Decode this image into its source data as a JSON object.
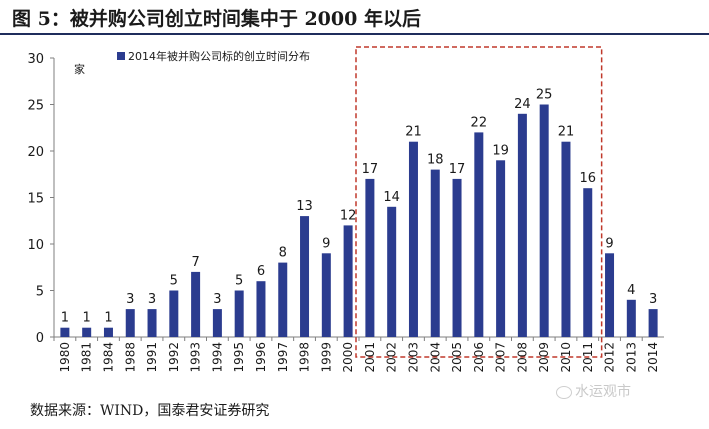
{
  "figure_title": "图 5：被并购公司创立时间集中于 2000 年以后",
  "source_note": "数据来源：WIND，国泰君安证券研究",
  "watermark_text": "水运观市",
  "colors": {
    "bar": "#2b3c8f",
    "highlight_box": "#c0392b",
    "rule": "#1f2d5c"
  },
  "chart_data": {
    "type": "bar",
    "title": "",
    "xlabel": "",
    "ylabel": "家",
    "ylim": [
      0,
      30
    ],
    "yticks": [
      0,
      5,
      10,
      15,
      20,
      25,
      30
    ],
    "grid": false,
    "legend_position": "top-left",
    "categories": [
      "1980",
      "1981",
      "1984",
      "1988",
      "1991",
      "1992",
      "1993",
      "1994",
      "1995",
      "1996",
      "1997",
      "1998",
      "1999",
      "2000",
      "2001",
      "2002",
      "2003",
      "2004",
      "2005",
      "2006",
      "2007",
      "2008",
      "2009",
      "2010",
      "2011",
      "2012",
      "2013",
      "2014"
    ],
    "series": [
      {
        "name": "2014年被并购公司标的创立时间分布",
        "values": [
          1,
          1,
          1,
          3,
          3,
          5,
          7,
          3,
          5,
          6,
          8,
          13,
          9,
          12,
          17,
          14,
          21,
          18,
          17,
          22,
          19,
          24,
          25,
          21,
          16,
          9,
          4,
          3
        ]
      }
    ],
    "highlight_range": [
      "2001",
      "2011"
    ]
  }
}
